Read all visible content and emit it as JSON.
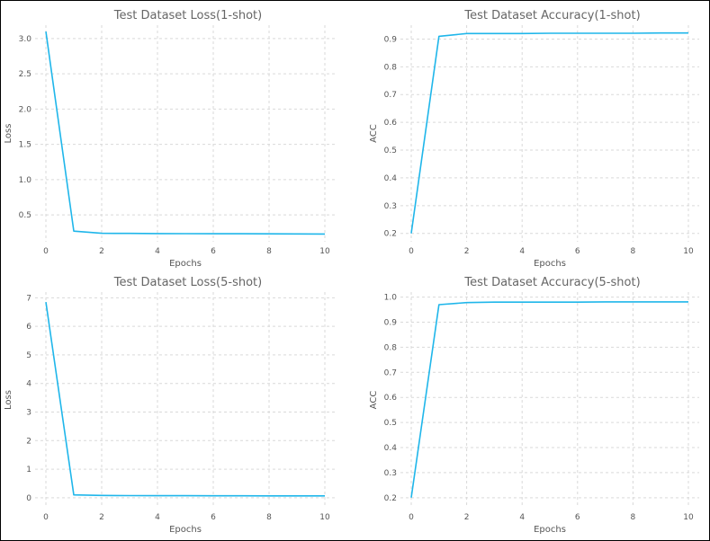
{
  "colors": {
    "line": "#1FB6EA",
    "grid": "#d9d9d9",
    "axis_text": "#555555",
    "title_text": "#666666",
    "frame": "#000000"
  },
  "chart_data": [
    {
      "type": "line",
      "title": "Test Dataset Loss(1-shot)",
      "xlabel": "Epochs",
      "ylabel": "Loss",
      "grid": true,
      "xlim": [
        0,
        10
      ],
      "ylim": [
        0.12,
        3.19
      ],
      "xticks": [
        0,
        2,
        4,
        6,
        8,
        10
      ],
      "yticks": [
        0.5,
        1.0,
        1.5,
        2.0,
        2.5,
        3.0
      ],
      "ytick_labels": [
        "0.5",
        "1.0",
        "1.5",
        "2.0",
        "2.5",
        "3.0"
      ],
      "x": [
        0,
        1,
        2,
        3,
        4,
        5,
        6,
        7,
        8,
        9,
        10
      ],
      "values": [
        3.1,
        0.27,
        0.24,
        0.238,
        0.236,
        0.235,
        0.234,
        0.233,
        0.232,
        0.231,
        0.23
      ]
    },
    {
      "type": "line",
      "title": "Test Dataset Accuracy(1-shot)",
      "xlabel": "Epochs",
      "ylabel": "ACC",
      "grid": true,
      "xlim": [
        0,
        10
      ],
      "ylim": [
        0.17,
        0.95
      ],
      "xticks": [
        0,
        2,
        4,
        6,
        8,
        10
      ],
      "yticks": [
        0.2,
        0.3,
        0.4,
        0.5,
        0.6,
        0.7,
        0.8,
        0.9
      ],
      "ytick_labels": [
        "0.2",
        "0.3",
        "0.4",
        "0.5",
        "0.6",
        "0.7",
        "0.8",
        "0.9"
      ],
      "x": [
        0,
        1,
        2,
        3,
        4,
        5,
        6,
        7,
        8,
        9,
        10
      ],
      "values": [
        0.2,
        0.91,
        0.92,
        0.92,
        0.92,
        0.921,
        0.921,
        0.921,
        0.921,
        0.922,
        0.922
      ]
    },
    {
      "type": "line",
      "title": "Test Dataset Loss(5-shot)",
      "xlabel": "Epochs",
      "ylabel": "Loss",
      "grid": true,
      "xlim": [
        0,
        10
      ],
      "ylim": [
        -0.35,
        7.2
      ],
      "xticks": [
        0,
        2,
        4,
        6,
        8,
        10
      ],
      "yticks": [
        0,
        1,
        2,
        3,
        4,
        5,
        6,
        7
      ],
      "ytick_labels": [
        "0",
        "1",
        "2",
        "3",
        "4",
        "5",
        "6",
        "7"
      ],
      "x": [
        0,
        1,
        2,
        3,
        4,
        5,
        6,
        7,
        8,
        9,
        10
      ],
      "values": [
        6.85,
        0.1,
        0.08,
        0.075,
        0.07,
        0.07,
        0.068,
        0.067,
        0.066,
        0.065,
        0.064
      ]
    },
    {
      "type": "line",
      "title": "Test Dataset Accuracy(5-shot)",
      "xlabel": "Epochs",
      "ylabel": "ACC",
      "grid": true,
      "xlim": [
        0,
        10
      ],
      "ylim": [
        0.16,
        1.02
      ],
      "xticks": [
        0,
        2,
        4,
        6,
        8,
        10
      ],
      "yticks": [
        0.2,
        0.3,
        0.4,
        0.5,
        0.6,
        0.7,
        0.8,
        0.9,
        1.0
      ],
      "ytick_labels": [
        "0.2",
        "0.3",
        "0.4",
        "0.5",
        "0.6",
        "0.7",
        "0.8",
        "0.9",
        "1.0"
      ],
      "x": [
        0,
        1,
        2,
        3,
        4,
        5,
        6,
        7,
        8,
        9,
        10
      ],
      "values": [
        0.2,
        0.97,
        0.978,
        0.98,
        0.98,
        0.98,
        0.98,
        0.981,
        0.981,
        0.981,
        0.981
      ]
    }
  ]
}
